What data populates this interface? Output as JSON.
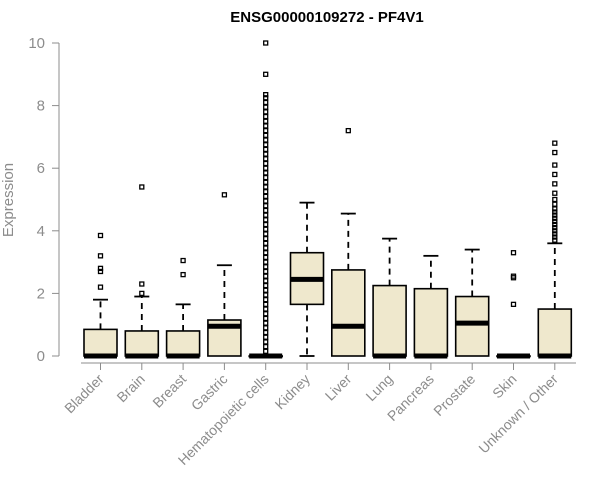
{
  "chart_data": {
    "type": "boxplot",
    "title": "ENSG00000109272 - PF4V1",
    "xlabel": "",
    "ylabel": "Expression",
    "ylim": [
      0,
      10
    ],
    "yticks": [
      0,
      2,
      4,
      6,
      8,
      10
    ],
    "categories": [
      "Bladder",
      "Brain",
      "Breast",
      "Gastric",
      "Hematopoietic cells",
      "Kidney",
      "Liver",
      "Lung",
      "Pancreas",
      "Prostate",
      "Skin",
      "Unknown / Other"
    ],
    "colors": {
      "box_fill": "#efe8cd",
      "stroke": "#000000",
      "axis": "#8c8c8c"
    },
    "boxes": [
      {
        "category": "Bladder",
        "q1": 0,
        "median": 0,
        "q3": 0.85,
        "whisker_low": 0,
        "whisker_high": 1.8,
        "outliers": [
          2.2,
          2.7,
          2.8,
          3.2,
          3.85
        ]
      },
      {
        "category": "Brain",
        "q1": 0,
        "median": 0,
        "q3": 0.8,
        "whisker_low": 0,
        "whisker_high": 1.9,
        "outliers": [
          2.0,
          2.3,
          5.4
        ]
      },
      {
        "category": "Breast",
        "q1": 0,
        "median": 0,
        "q3": 0.8,
        "whisker_low": 0,
        "whisker_high": 1.65,
        "outliers": [
          2.6,
          3.05
        ]
      },
      {
        "category": "Gastric",
        "q1": 0,
        "median": 0.95,
        "q3": 1.15,
        "whisker_low": 0,
        "whisker_high": 2.9,
        "outliers": [
          5.15
        ]
      },
      {
        "category": "Hematopoietic cells",
        "q1": 0,
        "median": 0,
        "q3": 0,
        "whisker_low": 0,
        "whisker_high": 0,
        "outliers": [
          0.15,
          0.3,
          0.45,
          0.6,
          0.75,
          0.9,
          1.05,
          1.2,
          1.35,
          1.5,
          1.65,
          1.8,
          1.95,
          2.1,
          2.25,
          2.4,
          2.55,
          2.7,
          2.85,
          3.0,
          3.15,
          3.3,
          3.45,
          3.6,
          3.75,
          3.9,
          4.05,
          4.2,
          4.35,
          4.5,
          4.65,
          4.8,
          4.95,
          5.1,
          5.25,
          5.4,
          5.55,
          5.7,
          5.85,
          6.0,
          6.15,
          6.3,
          6.45,
          6.6,
          6.75,
          6.9,
          7.05,
          7.2,
          7.35,
          7.5,
          7.65,
          7.8,
          7.95,
          8.1,
          8.25,
          8.35,
          9.0,
          10.0
        ]
      },
      {
        "category": "Kidney",
        "q1": 1.65,
        "median": 2.45,
        "q3": 3.3,
        "whisker_low": 0,
        "whisker_high": 4.9,
        "outliers": []
      },
      {
        "category": "Liver",
        "q1": 0,
        "median": 0.95,
        "q3": 2.75,
        "whisker_low": 0,
        "whisker_high": 4.55,
        "outliers": [
          7.2
        ]
      },
      {
        "category": "Lung",
        "q1": 0,
        "median": 0,
        "q3": 2.25,
        "whisker_low": 0,
        "whisker_high": 3.75,
        "outliers": []
      },
      {
        "category": "Pancreas",
        "q1": 0,
        "median": 0,
        "q3": 2.15,
        "whisker_low": 0,
        "whisker_high": 3.2,
        "outliers": []
      },
      {
        "category": "Prostate",
        "q1": 0,
        "median": 1.05,
        "q3": 1.9,
        "whisker_low": 0,
        "whisker_high": 3.4,
        "outliers": []
      },
      {
        "category": "Skin",
        "q1": 0,
        "median": 0,
        "q3": 0,
        "whisker_low": 0,
        "whisker_high": 0,
        "outliers": [
          1.65,
          2.5,
          2.55,
          3.3
        ]
      },
      {
        "category": "Unknown / Other",
        "q1": 0,
        "median": 0,
        "q3": 1.5,
        "whisker_low": 0,
        "whisker_high": 3.6,
        "outliers": [
          3.7,
          3.8,
          3.9,
          4.0,
          4.1,
          4.2,
          4.3,
          4.4,
          4.5,
          4.6,
          4.7,
          4.85,
          5.0,
          5.2,
          5.5,
          5.8,
          6.1,
          6.5,
          6.8
        ]
      }
    ]
  }
}
